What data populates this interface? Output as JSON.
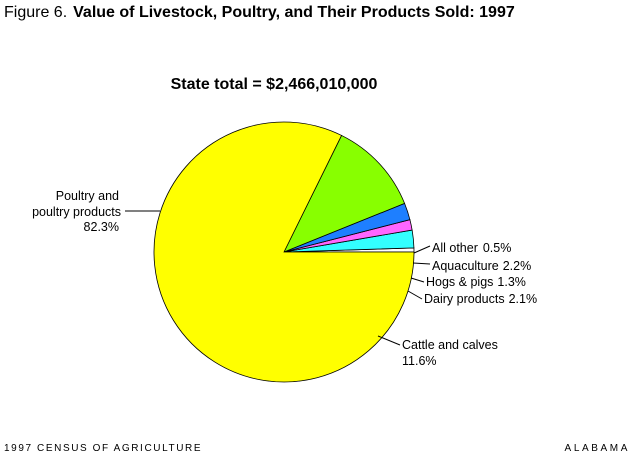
{
  "figure": {
    "number_label": "Figure 6.",
    "title": "Value of Livestock, Poultry, and Their Products Sold: 1997"
  },
  "footer": {
    "left": "1997 CENSUS OF AGRICULTURE",
    "right": "ALABAMA"
  },
  "chart_data": {
    "type": "pie",
    "title": "State total = $2,466,010,000",
    "slices": [
      {
        "label": "All other",
        "value_text": "0.5%",
        "value": 0.5,
        "color": "#ffffff"
      },
      {
        "label": "Aquaculture",
        "value_text": "2.2%",
        "value": 2.2,
        "color": "#33ffff"
      },
      {
        "label": "Hogs & pigs",
        "value_text": "1.3%",
        "value": 1.3,
        "color": "#ff66ff"
      },
      {
        "label": "Dairy products",
        "value_text": "2.1%",
        "value": 2.1,
        "color": "#1e7fff"
      },
      {
        "label": "Cattle and calves",
        "value_text": "11.6%",
        "value": 11.6,
        "color": "#88ff00"
      },
      {
        "label": "Poultry and poultry products",
        "value_text": "82.3%",
        "value": 82.3,
        "color": "#ffff00"
      }
    ],
    "legend": "none"
  }
}
